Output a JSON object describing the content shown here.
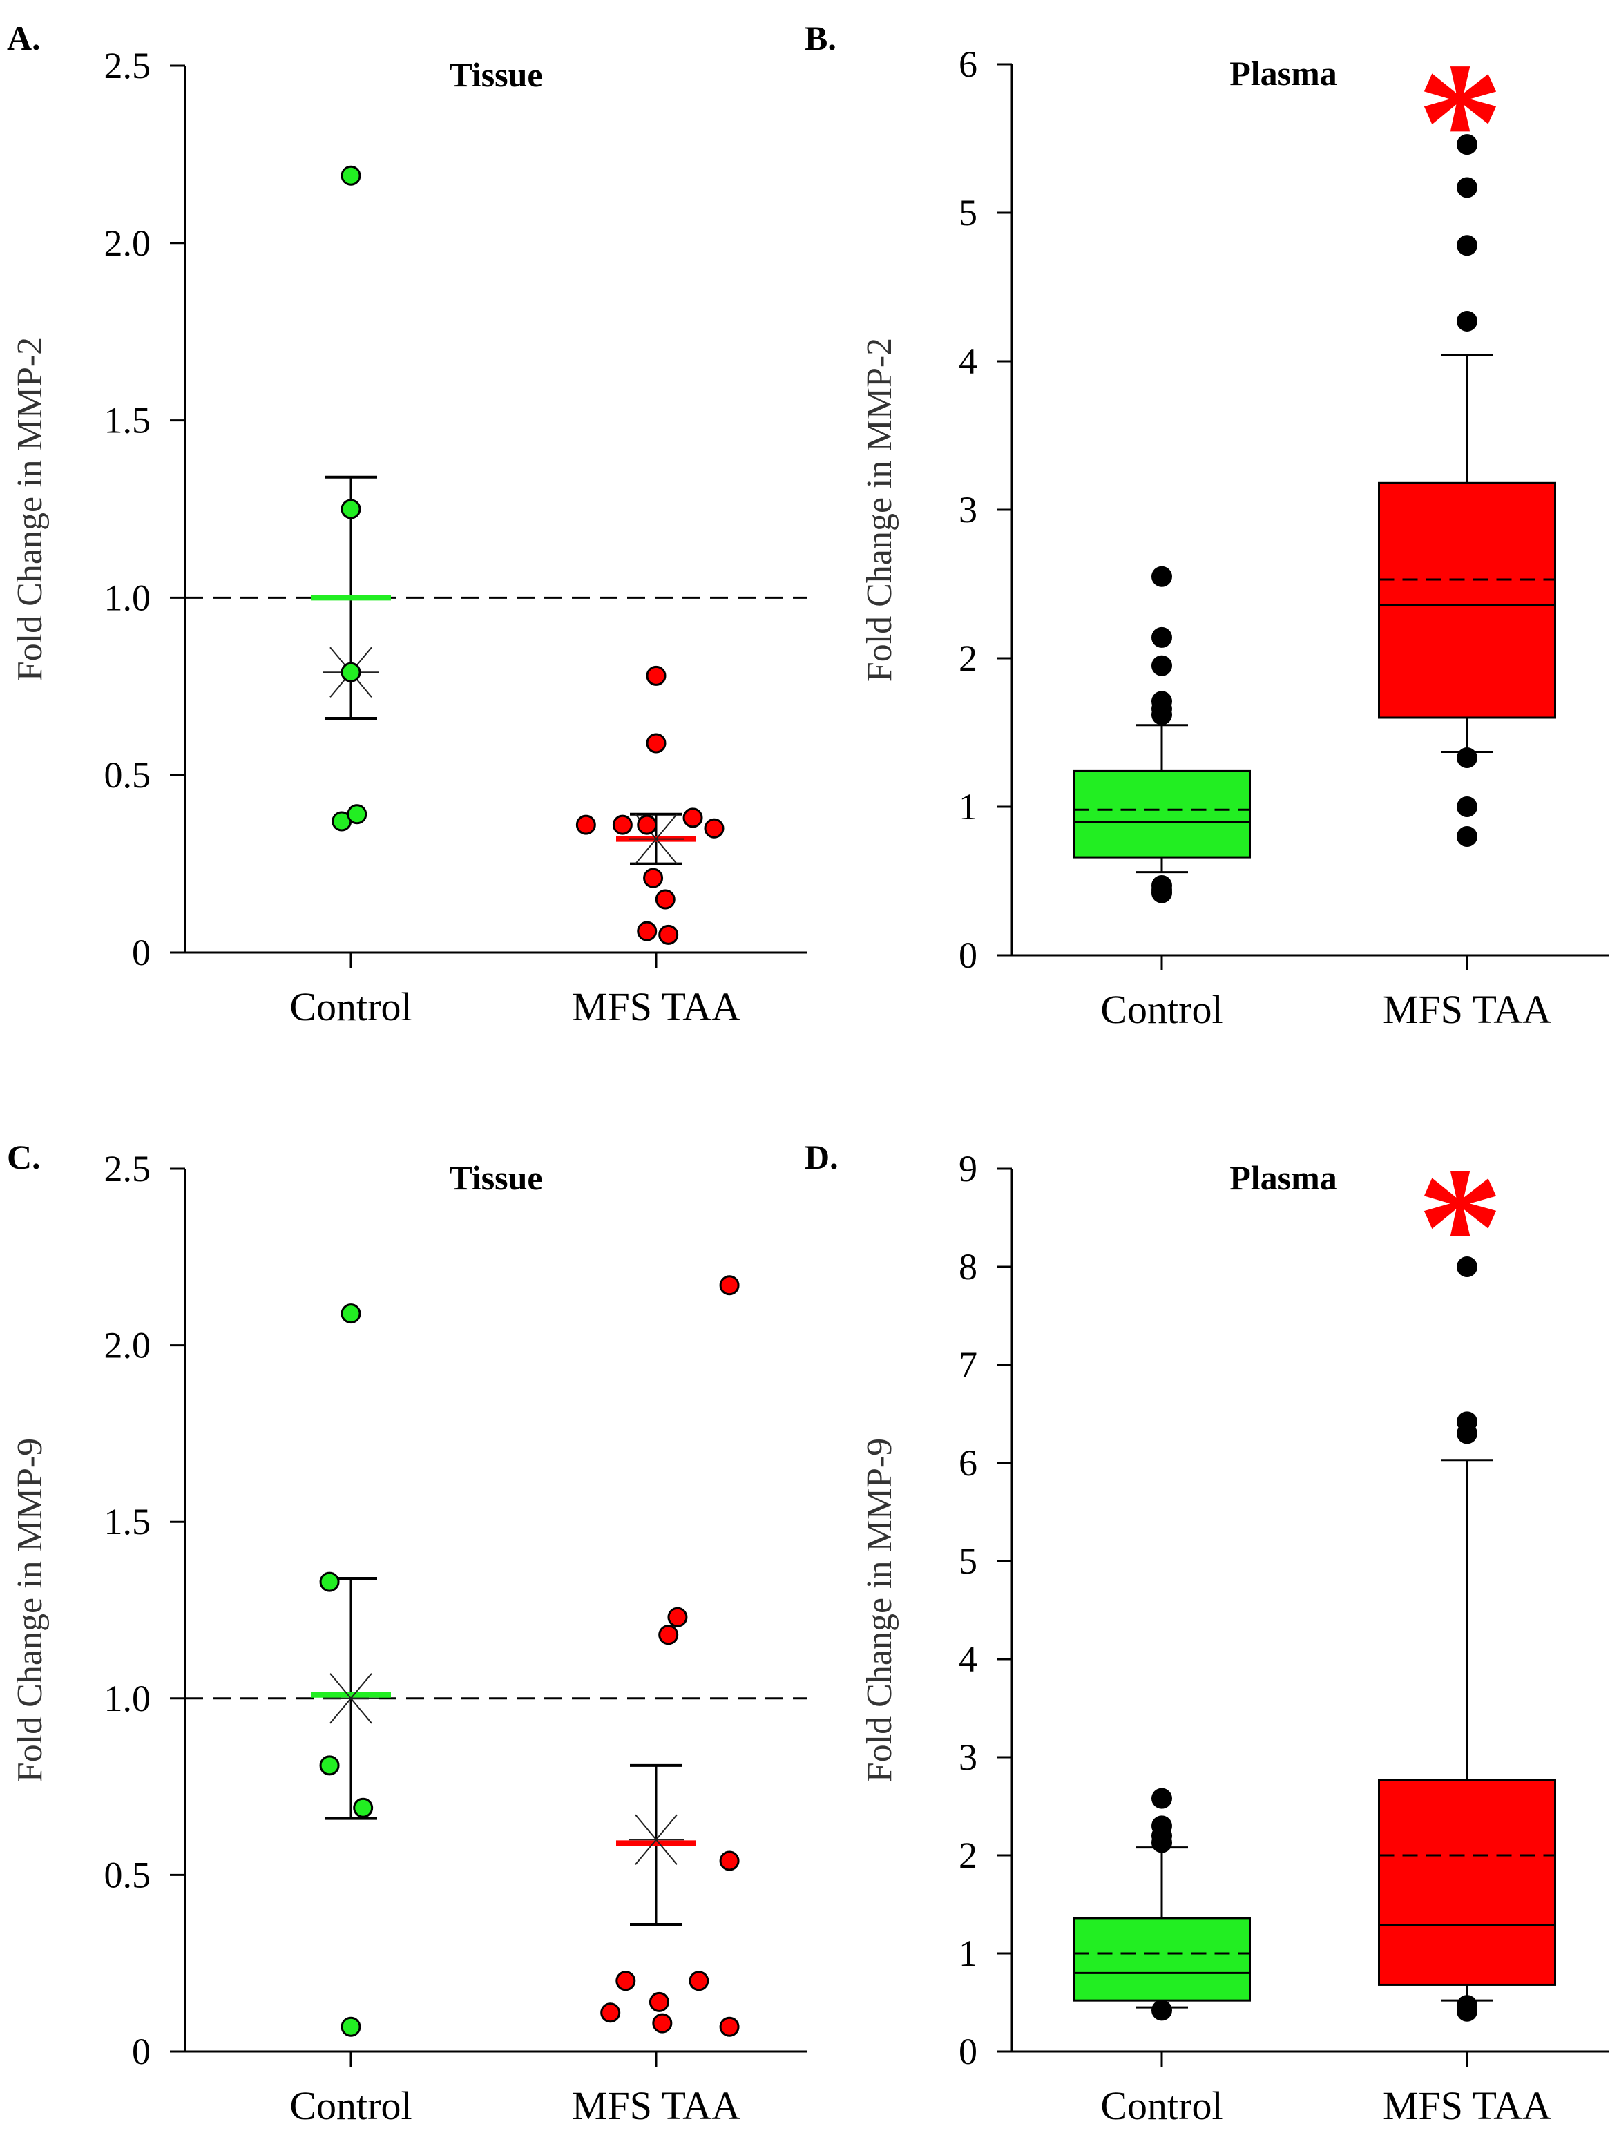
{
  "figure": {
    "colors": {
      "control": "#22ee22",
      "mfs": "#ff0000",
      "outlier": "#000000",
      "star": "#ff0000"
    }
  },
  "chart_data": [
    {
      "id": "A",
      "panel_label": "A.",
      "type": "scatter",
      "title": "Tissue",
      "xlabel": "",
      "ylabel": "Fold Change  in  MMP-2",
      "categories": [
        "Control",
        "MFS TAA"
      ],
      "yticks": [
        "0",
        "0.5",
        "1.0",
        "1.5",
        "2.0",
        "2.5"
      ],
      "ylim": [
        0,
        2.5
      ],
      "reference_line": 1.0,
      "series": [
        {
          "name": "Control",
          "color": "control",
          "mean": 1.0,
          "median": 0.79,
          "sem_upper": 1.34,
          "sem_lower": 0.66,
          "points": [
            [
              0,
              2.19
            ],
            [
              0,
              1.25
            ],
            [
              0,
              0.79
            ],
            [
              -0.03,
              0.37
            ],
            [
              0.02,
              0.39
            ]
          ]
        },
        {
          "name": "MFS TAA",
          "color": "mfs",
          "mean": 0.32,
          "median": 0.32,
          "sem_upper": 0.39,
          "sem_lower": 0.25,
          "points": [
            [
              0,
              0.78
            ],
            [
              0,
              0.59
            ],
            [
              -0.23,
              0.36
            ],
            [
              -0.11,
              0.36
            ],
            [
              -0.03,
              0.36
            ],
            [
              0.12,
              0.38
            ],
            [
              0.19,
              0.35
            ],
            [
              -0.01,
              0.21
            ],
            [
              0.03,
              0.15
            ],
            [
              -0.03,
              0.06
            ],
            [
              0.04,
              0.05
            ]
          ]
        }
      ]
    },
    {
      "id": "B",
      "panel_label": "B.",
      "type": "box",
      "title": "Plasma",
      "significance": "*",
      "xlabel": "",
      "ylabel": "Fold Change  in  MMP-2",
      "categories": [
        "Control",
        "MFS TAA"
      ],
      "yticks": [
        "0",
        "1",
        "2",
        "3",
        "4",
        "5",
        "6"
      ],
      "ylim": [
        0,
        6
      ],
      "series": [
        {
          "name": "Control",
          "color": "control",
          "q1": 0.66,
          "median": 0.9,
          "q3": 1.24,
          "mean": 0.98,
          "whisker_low": 0.56,
          "whisker_high": 1.55,
          "outliers": [
            2.55,
            2.14,
            1.95,
            1.71,
            1.66,
            1.62,
            0.47,
            0.44,
            0.42
          ]
        },
        {
          "name": "MFS TAA",
          "color": "mfs",
          "q1": 1.6,
          "median": 2.36,
          "q3": 3.18,
          "mean": 2.53,
          "whisker_low": 1.37,
          "whisker_high": 4.04,
          "outliers": [
            5.46,
            5.17,
            4.78,
            4.27,
            1.33,
            1.0,
            0.8
          ]
        }
      ]
    },
    {
      "id": "C",
      "panel_label": "C.",
      "type": "scatter",
      "title": "Tissue",
      "xlabel": "",
      "ylabel": "Fold Change  in  MMP-9",
      "categories": [
        "Control",
        "MFS TAA"
      ],
      "yticks": [
        "0",
        "0.5",
        "1.0",
        "1.5",
        "2.0",
        "2.5"
      ],
      "ylim": [
        0,
        2.5
      ],
      "reference_line": 1.0,
      "series": [
        {
          "name": "Control",
          "color": "control",
          "mean": 1.01,
          "median": 1.0,
          "sem_upper": 1.34,
          "sem_lower": 0.66,
          "points": [
            [
              0,
              2.09
            ],
            [
              -0.07,
              1.33
            ],
            [
              -0.07,
              0.81
            ],
            [
              0.04,
              0.69
            ],
            [
              0,
              0.07
            ]
          ]
        },
        {
          "name": "MFS TAA",
          "color": "mfs",
          "mean": 0.59,
          "median": 0.6,
          "sem_upper": 0.81,
          "sem_lower": 0.36,
          "points": [
            [
              0.24,
              2.17
            ],
            [
              0.07,
              1.23
            ],
            [
              0.04,
              1.18
            ],
            [
              0.24,
              0.54
            ],
            [
              -0.1,
              0.2
            ],
            [
              0.14,
              0.2
            ],
            [
              0.01,
              0.14
            ],
            [
              -0.15,
              0.11
            ],
            [
              0.02,
              0.08
            ],
            [
              0.24,
              0.07
            ]
          ]
        }
      ]
    },
    {
      "id": "D",
      "panel_label": "D.",
      "type": "box",
      "title": "Plasma",
      "significance": "*",
      "xlabel": "",
      "ylabel": "Fold Change  in  MMP-9",
      "categories": [
        "Control",
        "MFS TAA"
      ],
      "yticks": [
        "0",
        "1",
        "2",
        "3",
        "4",
        "5",
        "6",
        "7",
        "8",
        "9"
      ],
      "ylim": [
        0,
        9
      ],
      "series": [
        {
          "name": "Control",
          "color": "control",
          "q1": 0.52,
          "median": 0.8,
          "q3": 1.36,
          "mean": 1.0,
          "whisker_low": 0.45,
          "whisker_high": 2.08,
          "outliers": [
            2.58,
            2.3,
            2.2,
            2.13,
            0.42
          ]
        },
        {
          "name": "MFS TAA",
          "color": "mfs",
          "q1": 0.68,
          "median": 1.29,
          "q3": 2.77,
          "mean": 2.0,
          "whisker_low": 0.52,
          "whisker_high": 6.03,
          "outliers": [
            8.0,
            6.42,
            6.3,
            0.47,
            0.41
          ]
        }
      ]
    }
  ]
}
